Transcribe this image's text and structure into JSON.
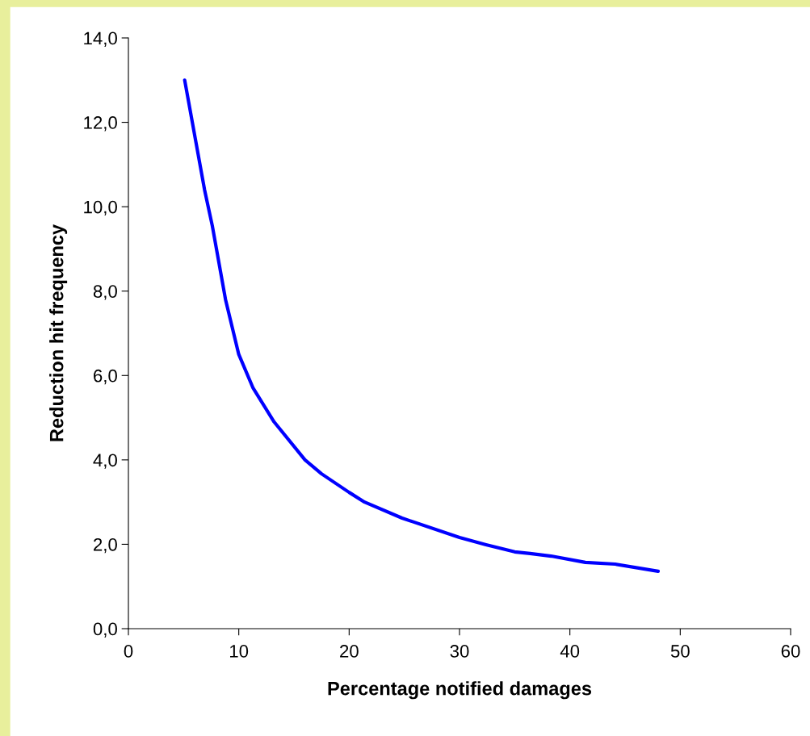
{
  "chart_data": {
    "type": "line",
    "xlabel": "Percentage notified damages",
    "ylabel": "Reduction hit frequency",
    "x": [
      5.1,
      6.9,
      7.6,
      8.8,
      10.0,
      11.3,
      13.2,
      16.0,
      17.5,
      20.0,
      21.4,
      24.8,
      30.0,
      32.4,
      35.0,
      36.4,
      38.3,
      41.4,
      44.1,
      48.0
    ],
    "series": [
      {
        "color": "#0000ff",
        "values": [
          13.0,
          10.4,
          9.55,
          7.8,
          6.5,
          5.7,
          4.9,
          4.0,
          3.67,
          3.23,
          3.0,
          2.62,
          2.16,
          1.99,
          1.82,
          1.78,
          1.72,
          1.57,
          1.53,
          1.36
        ]
      }
    ],
    "xlim": [
      0,
      60
    ],
    "xticks": [
      0,
      10,
      20,
      30,
      40,
      50,
      60
    ],
    "ylim": [
      0,
      14
    ],
    "yticks": [
      {
        "value": 0,
        "label": "0,0"
      },
      {
        "value": 2,
        "label": "2,0"
      },
      {
        "value": 4,
        "label": "4,0"
      },
      {
        "value": 6,
        "label": "6,0"
      },
      {
        "value": 8,
        "label": "8,0"
      },
      {
        "value": 10,
        "label": "10,0"
      },
      {
        "value": 12,
        "label": "12,0"
      },
      {
        "value": 14,
        "label": "14,0"
      }
    ],
    "grid": false,
    "marker": "none",
    "line_style": "solid"
  }
}
